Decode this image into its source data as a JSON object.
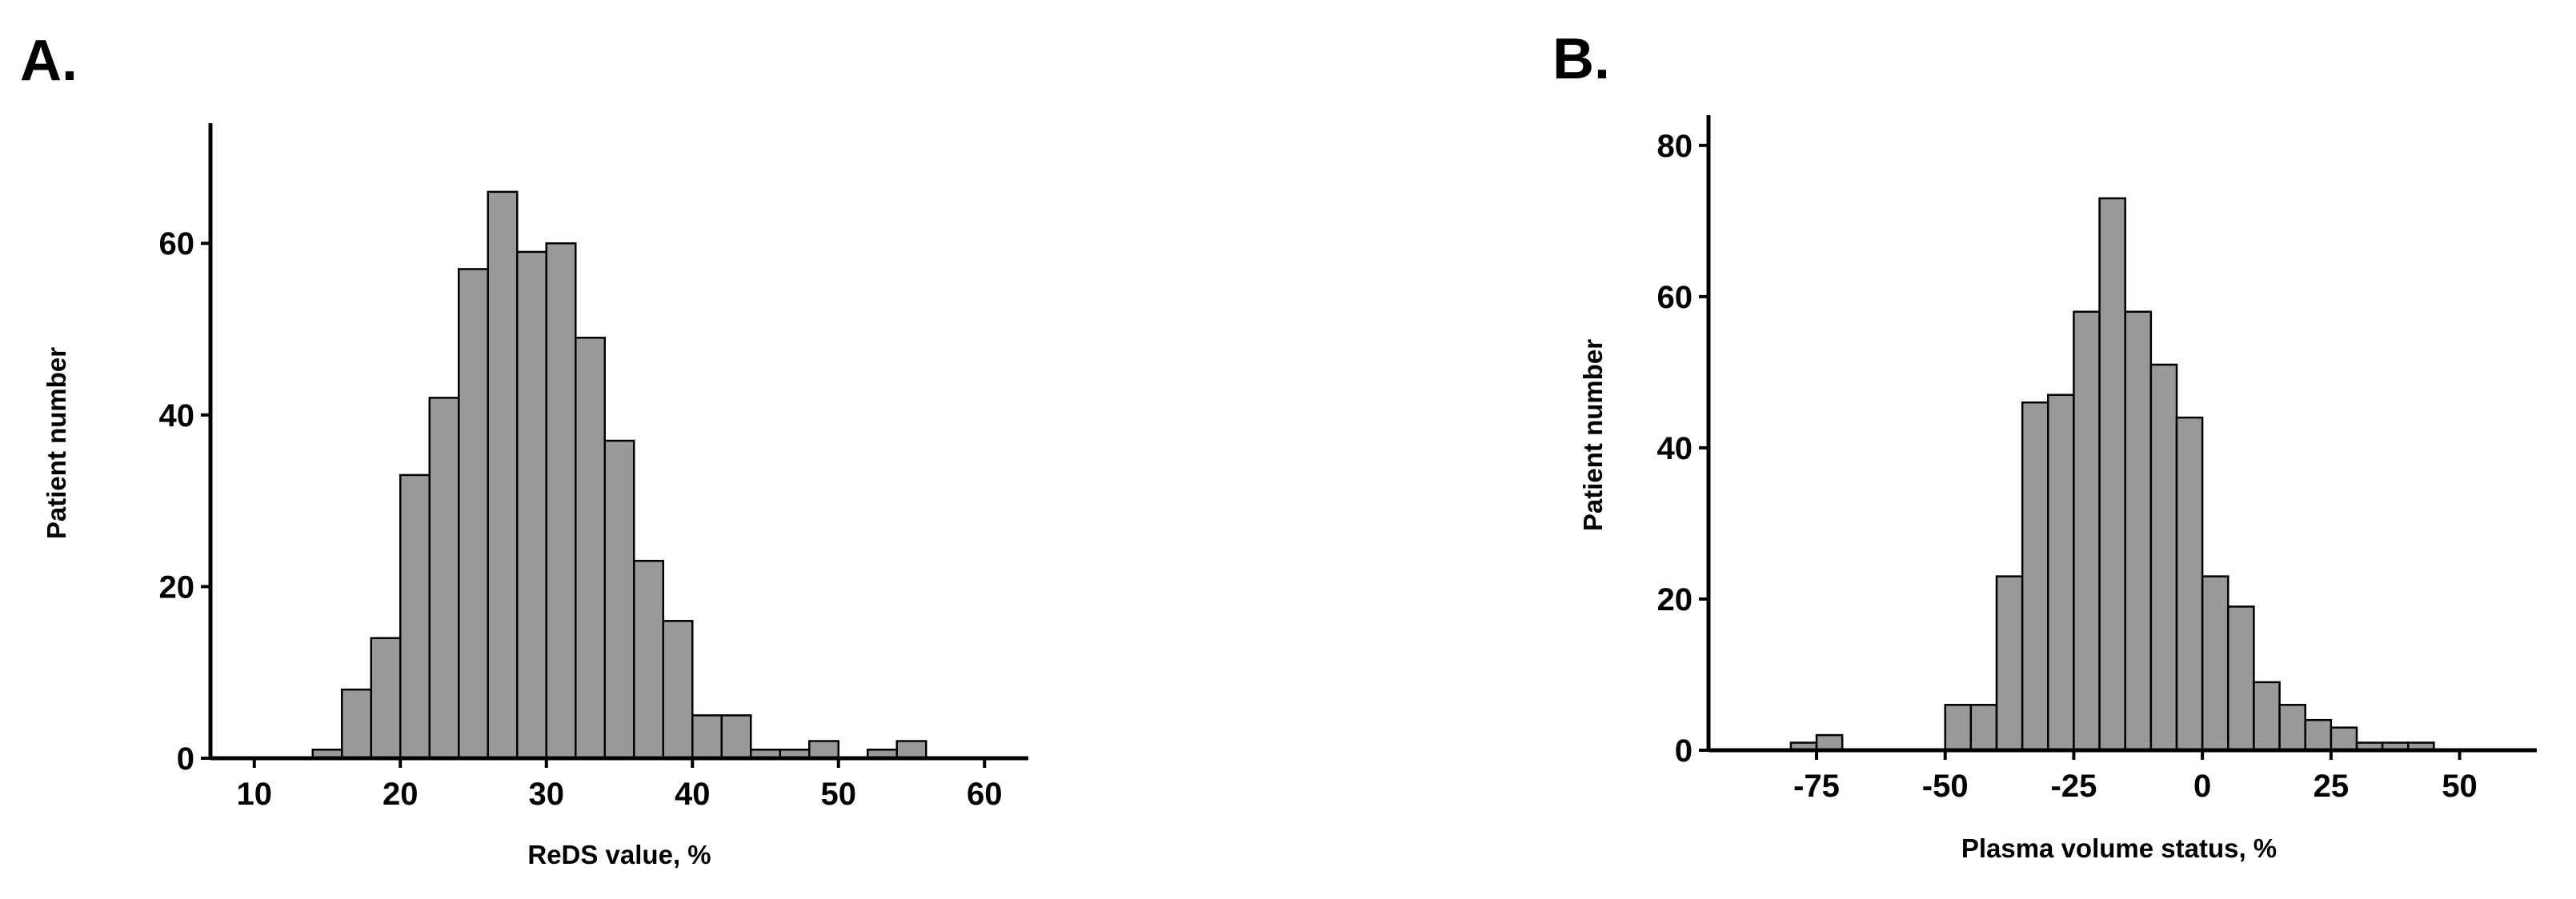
{
  "chart_data": [
    {
      "type": "histogram",
      "label": "A.",
      "xlabel": "ReDS value, %",
      "ylabel": "Patient number",
      "bins": [
        10,
        12,
        14,
        16,
        18,
        20,
        22,
        24,
        26,
        28,
        30,
        32,
        34,
        36,
        38,
        40,
        42,
        44,
        46,
        48,
        50,
        52,
        54,
        56,
        58,
        60,
        62
      ],
      "values": [
        0,
        0,
        1,
        8,
        14,
        33,
        42,
        57,
        66,
        59,
        60,
        49,
        37,
        23,
        16,
        5,
        5,
        1,
        1,
        2,
        0,
        1,
        2,
        0,
        0,
        0
      ],
      "color": "#999999",
      "xlim": [
        7,
        63
      ],
      "ylim": [
        0,
        74
      ],
      "xticks": [
        10,
        20,
        30,
        40,
        50,
        60
      ],
      "yticks": [
        0,
        20,
        40,
        60
      ]
    },
    {
      "type": "histogram",
      "label": "B.",
      "xlabel": "Plasma volume status, %",
      "ylabel": "Patient number",
      "bins": [
        -80,
        -75,
        -70,
        -65,
        -60,
        -55,
        -50,
        -45,
        -40,
        -35,
        -30,
        -25,
        -20,
        -15,
        -10,
        -5,
        0,
        5,
        10,
        15,
        20,
        25,
        30,
        35,
        40,
        45
      ],
      "values": [
        1,
        2,
        0,
        0,
        0,
        0,
        6,
        6,
        23,
        46,
        47,
        58,
        73,
        58,
        51,
        44,
        23,
        19,
        9,
        6,
        4,
        3,
        1,
        1,
        1
      ],
      "color": "#999999",
      "xlim": [
        -96,
        65
      ],
      "ylim": [
        0,
        84
      ],
      "xticks": [
        -75,
        -50,
        -25,
        0,
        25,
        50
      ],
      "yticks": [
        0,
        20,
        40,
        60,
        80
      ]
    }
  ]
}
